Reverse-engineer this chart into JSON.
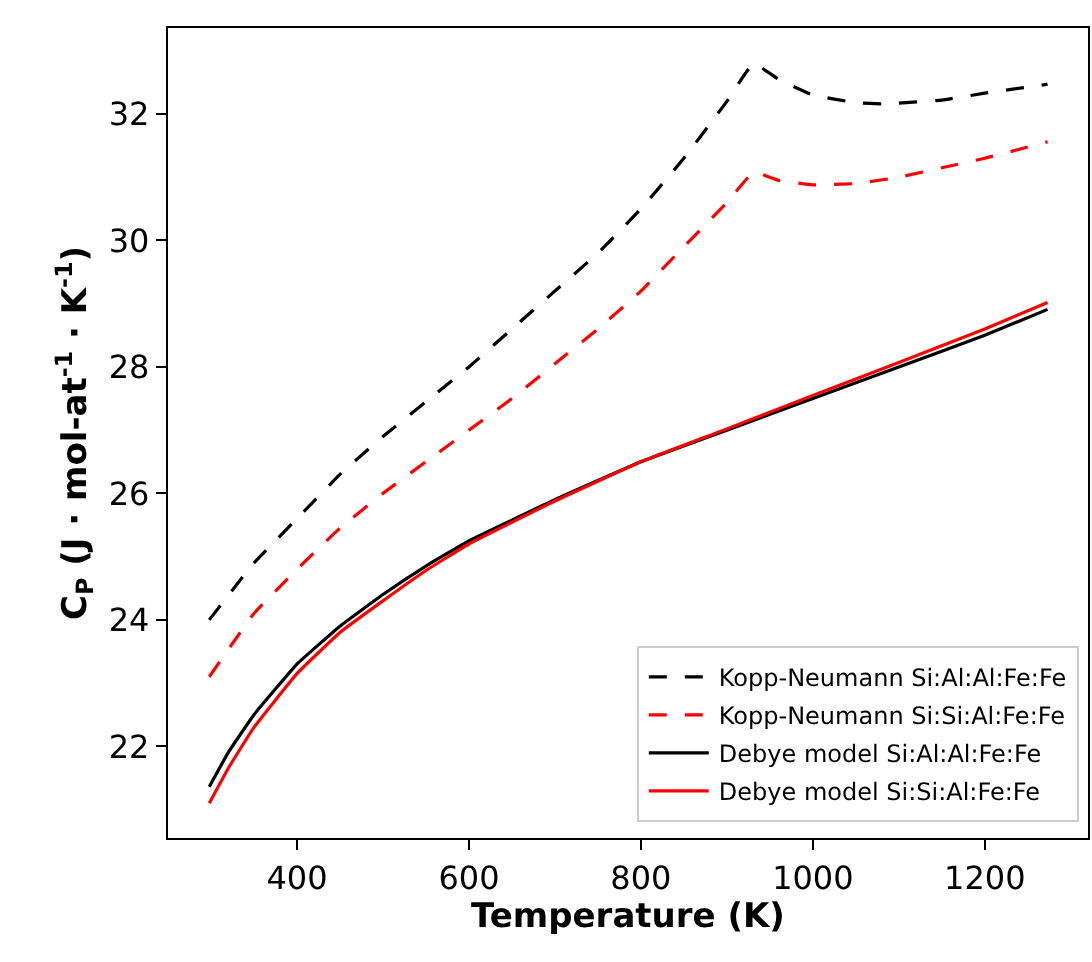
{
  "chart_data": {
    "type": "line",
    "xlabel": "Temperature (K)",
    "ylabel": "C$_{P}$ (J · mol-at$^{-1}$ · K$^{-1}$)",
    "xlim": [
      250,
      1320
    ],
    "ylim": [
      20.55,
      33.36
    ],
    "xticks": [
      400,
      600,
      800,
      1000,
      1200
    ],
    "yticks": [
      22,
      24,
      26,
      28,
      30,
      32
    ],
    "legend": "bottom right",
    "series": [
      {
        "name": "Kopp-Neumann Si:Al:Al:Fe:Fe",
        "color": "#000000",
        "line_style": "dashed",
        "x": [
          298,
          350,
          400,
          450,
          500,
          550,
          600,
          650,
          700,
          750,
          800,
          850,
          900,
          931,
          960,
          1000,
          1050,
          1083,
          1150,
          1200,
          1273
        ],
        "values": [
          24.0,
          24.9,
          25.6,
          26.3,
          26.9,
          27.45,
          28.0,
          28.6,
          29.2,
          29.8,
          30.5,
          31.3,
          32.2,
          32.8,
          32.55,
          32.3,
          32.18,
          32.16,
          32.22,
          32.33,
          32.47
        ]
      },
      {
        "name": "Kopp-Neumann Si:Si:Al:Fe:Fe",
        "color": "#ff0000",
        "line_style": "dashed",
        "x": [
          298,
          350,
          400,
          450,
          500,
          550,
          600,
          650,
          700,
          750,
          800,
          850,
          900,
          931,
          960,
          1000,
          1050,
          1100,
          1150,
          1200,
          1273
        ],
        "values": [
          23.1,
          24.1,
          24.8,
          25.45,
          26.0,
          26.5,
          27.0,
          27.5,
          28.05,
          28.6,
          29.2,
          29.9,
          30.6,
          31.08,
          30.95,
          30.88,
          30.9,
          31.0,
          31.15,
          31.3,
          31.56
        ]
      },
      {
        "name": "Debye model Si:Al:Al:Fe:Fe",
        "color": "#000000",
        "line_style": "solid",
        "x": [
          298,
          320,
          350,
          400,
          450,
          500,
          550,
          600,
          700,
          800,
          900,
          1000,
          1100,
          1200,
          1273
        ],
        "values": [
          21.36,
          21.9,
          22.5,
          23.3,
          23.9,
          24.4,
          24.85,
          25.25,
          25.9,
          26.5,
          27.0,
          27.5,
          28.0,
          28.5,
          28.91
        ]
      },
      {
        "name": "Debye model Si:Si:Al:Fe:Fe",
        "color": "#ff0000",
        "line_style": "solid",
        "x": [
          298,
          320,
          350,
          400,
          450,
          500,
          550,
          600,
          700,
          800,
          900,
          1000,
          1100,
          1200,
          1273
        ],
        "values": [
          21.1,
          21.65,
          22.3,
          23.15,
          23.8,
          24.3,
          24.78,
          25.2,
          25.88,
          26.5,
          27.02,
          27.55,
          28.07,
          28.6,
          29.02
        ]
      }
    ]
  }
}
